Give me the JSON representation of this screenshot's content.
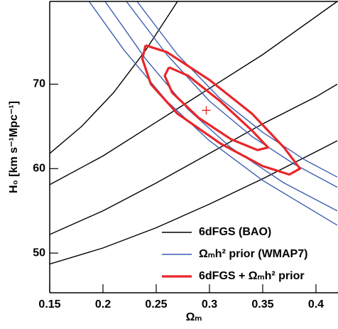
{
  "chart_data": {
    "type": "contour",
    "x_label": "Ωₘ",
    "y_label": "H₀ [km s⁻¹Mpc⁻¹]",
    "xlim": [
      0.15,
      0.4207
    ],
    "ylim": [
      45.3,
      79.8
    ],
    "xticks": [
      0.15,
      0.2,
      0.25,
      0.3,
      0.35,
      0.4
    ],
    "yticks": [
      50,
      60,
      70
    ],
    "legend": "lower right",
    "best_fit": {
      "x": 0.297,
      "y": 66.9,
      "color": "#e8262a"
    },
    "series": [
      {
        "name": "6dFGS (BAO)",
        "color": "#000000",
        "width": 1.4,
        "curves": [
          {
            "x": [
              0.15,
              0.18,
              0.21,
              0.24,
              0.27
            ],
            "y": [
              61.8,
              65,
              69,
              74,
              79.8
            ]
          },
          {
            "x": [
              0.15,
              0.2,
              0.25,
              0.3,
              0.35,
              0.42
            ],
            "y": [
              58.1,
              61.5,
              65.5,
              69.5,
              73.5,
              79.8
            ]
          },
          {
            "x": [
              0.15,
              0.2,
              0.25,
              0.3,
              0.35,
              0.4,
              0.42
            ],
            "y": [
              52.2,
              55,
              58.3,
              61.8,
              65.3,
              68.5,
              70
            ]
          },
          {
            "x": [
              0.15,
              0.2,
              0.25,
              0.3,
              0.35,
              0.4,
              0.42
            ],
            "y": [
              48.7,
              50.6,
              53,
              55.8,
              58.8,
              62,
              63.3
            ]
          }
        ]
      },
      {
        "name": "Ωₘh² prior (WMAP7)",
        "color": "#3a5fb0",
        "width": 1.4,
        "curves": [
          {
            "x": [
              0.187,
              0.22,
              0.26,
              0.3,
              0.35,
              0.42
            ],
            "y": [
              79.8,
              74,
              68,
              63.3,
              58.6,
              53.3
            ]
          },
          {
            "x": [
              0.202,
              0.24,
              0.28,
              0.32,
              0.37,
              0.42
            ],
            "y": [
              79.8,
              73,
              67,
              62.5,
              58.3,
              55
            ]
          },
          {
            "x": [
              0.222,
              0.26,
              0.3,
              0.34,
              0.38,
              0.42
            ],
            "y": [
              79.8,
              73.5,
              68,
              63.8,
              60.5,
              57.8
            ]
          },
          {
            "x": [
              0.232,
              0.27,
              0.31,
              0.35,
              0.39,
              0.42
            ],
            "y": [
              79.8,
              73.5,
              68.3,
              64.3,
              61,
              59
            ]
          }
        ]
      },
      {
        "name": "6dFGS + Ωₘh² prior",
        "color": "#e8262a",
        "width": 3.2,
        "curves": [
          {
            "x": [
              0.24,
              0.26,
              0.3,
              0.34,
              0.37,
              0.385,
              0.375,
              0.35,
              0.31,
              0.27,
              0.245,
              0.237,
              0.24
            ],
            "y": [
              74.6,
              73.8,
              70.5,
              66.5,
              62.5,
              60,
              59.3,
              60.3,
              63,
              66.5,
              70,
              73,
              74.6
            ]
          },
          {
            "x": [
              0.262,
              0.28,
              0.31,
              0.34,
              0.355,
              0.345,
              0.32,
              0.29,
              0.265,
              0.258,
              0.262
            ],
            "y": [
              72,
              71,
              68,
              64.5,
              62.5,
              62.2,
              63.5,
              66,
              69,
              71,
              72
            ]
          }
        ]
      }
    ]
  }
}
